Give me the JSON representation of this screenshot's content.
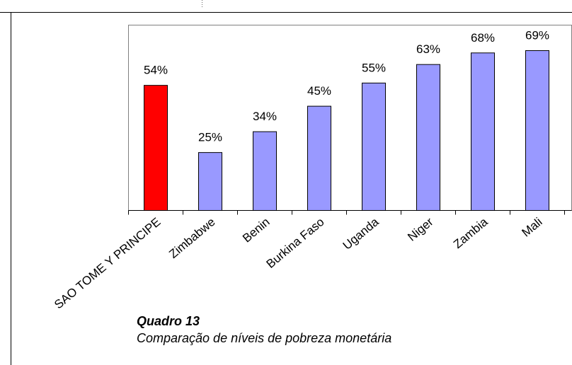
{
  "chart_data": {
    "type": "bar",
    "title": "Quadro 13",
    "subtitle": "Comparação de níveis de pobreza monetária",
    "categories": [
      "SAO TOME Y PRINCIPE",
      "Zimbabwe",
      "Benin",
      "Burkina Faso",
      "Uganda",
      "Niger",
      "Zambia",
      "Mali"
    ],
    "values": [
      54,
      25,
      34,
      45,
      55,
      63,
      68,
      69
    ],
    "value_labels": [
      "54%",
      "25%",
      "34%",
      "45%",
      "55%",
      "63%",
      "68%",
      "69%"
    ],
    "colors": [
      "#ff0000",
      "#9999ff",
      "#9999ff",
      "#9999ff",
      "#9999ff",
      "#9999ff",
      "#9999ff",
      "#9999ff"
    ],
    "ylim": [
      0,
      80
    ]
  }
}
